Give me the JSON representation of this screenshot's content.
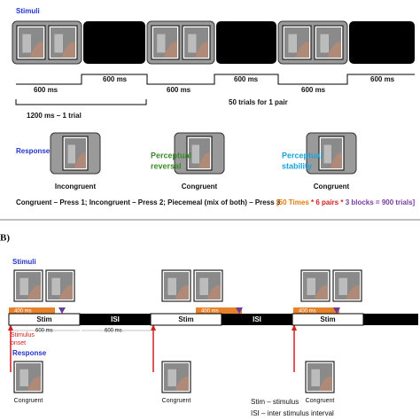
{
  "panel_a": {
    "stimuli_label": "Stimuli",
    "durations": [
      "600 ms",
      "600 ms",
      "600 ms",
      "600 ms",
      "600 ms",
      "600 ms"
    ],
    "trial_label": "1200 ms – 1 trial",
    "pairs_label": "50 trials for 1 pair",
    "response_label": "Response",
    "responses": [
      "Incongruent",
      "Congruent",
      "Congruent"
    ],
    "transitions": [
      [
        "Perceptual",
        "reversal"
      ],
      [
        "Perceptual",
        "stability"
      ]
    ],
    "instructions": "Congruent – Press 1; Incongruent – Press 2; Piecemeal (mix of both) – Press 3",
    "total": [
      "[50 Times",
      " * ",
      "6 pairs",
      " * ",
      "3 blocks = 900 trials]"
    ]
  },
  "panel_b": {
    "label": "B)",
    "stimuli_label": "Stimuli",
    "cue_labels": [
      "400 ms",
      "400 ms",
      "400 ms"
    ],
    "segments": [
      "Stim",
      "ISI",
      "Stim",
      "ISI",
      "Stim"
    ],
    "onset_label": [
      "Stimulus",
      "onset"
    ],
    "intervals": [
      "600 ms",
      "600 ms"
    ],
    "response_label": "Response",
    "responses": [
      "Congruent",
      "Congruent",
      "Congruent"
    ],
    "legend": [
      "Stim – stimulus",
      "ISI – inter stimulus interval"
    ]
  }
}
